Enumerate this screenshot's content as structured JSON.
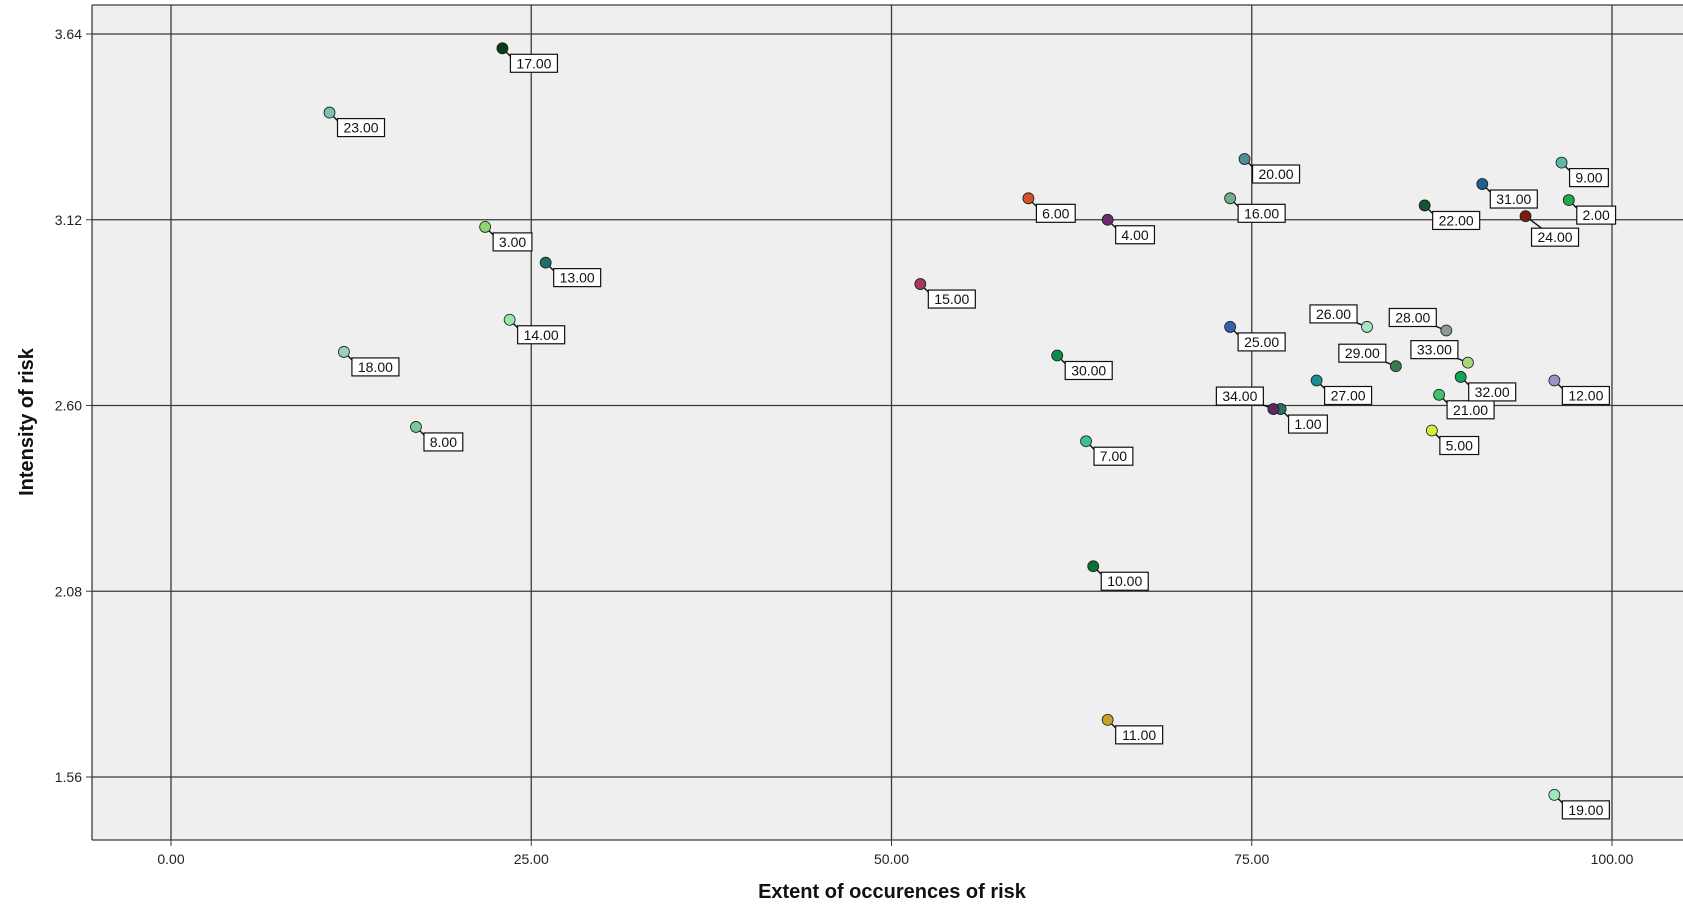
{
  "chart_data": {
    "type": "scatter",
    "title": "",
    "xlabel": "Extent of occurences of risk",
    "ylabel": "Intensity of risk",
    "xlim": [
      -5.5,
      105
    ],
    "ylim": [
      1.385,
      3.72
    ],
    "x_ticks": [
      0,
      25,
      50,
      75,
      100
    ],
    "x_tick_labels": [
      "0.00",
      "25.00",
      "50.00",
      "75.00",
      "100.00"
    ],
    "y_ticks": [
      1.56,
      2.08,
      2.6,
      3.12,
      3.64
    ],
    "y_tick_labels": [
      "1.56",
      "2.08",
      "2.60",
      "3.12",
      "3.64"
    ],
    "grid": true,
    "plot_background": "#efefef",
    "points": [
      {
        "label": "1.00",
        "x": 77.0,
        "y": 2.59,
        "color": "#2c6e63",
        "side": "right"
      },
      {
        "label": "2.00",
        "x": 97.0,
        "y": 3.175,
        "color": "#22a84a",
        "side": "right"
      },
      {
        "label": "3.00",
        "x": 21.8,
        "y": 3.1,
        "color": "#8fd46e",
        "side": "right"
      },
      {
        "label": "4.00",
        "x": 65.0,
        "y": 3.12,
        "color": "#6b2a6e",
        "side": "right"
      },
      {
        "label": "5.00",
        "x": 87.5,
        "y": 2.53,
        "color": "#d8ee3a",
        "side": "right"
      },
      {
        "label": "6.00",
        "x": 59.5,
        "y": 3.18,
        "color": "#d4502a",
        "side": "right"
      },
      {
        "label": "7.00",
        "x": 63.5,
        "y": 2.5,
        "color": "#3fbf8c",
        "side": "right"
      },
      {
        "label": "8.00",
        "x": 17.0,
        "y": 2.54,
        "color": "#7cc79a",
        "side": "right"
      },
      {
        "label": "9.00",
        "x": 96.5,
        "y": 3.28,
        "color": "#5ab8a8",
        "side": "right"
      },
      {
        "label": "10.00",
        "x": 64.0,
        "y": 2.15,
        "color": "#0e6f38",
        "side": "right"
      },
      {
        "label": "11.00",
        "x": 65.0,
        "y": 1.72,
        "color": "#c7a32a",
        "side": "right"
      },
      {
        "label": "12.00",
        "x": 96.0,
        "y": 2.67,
        "color": "#9b93c6",
        "side": "right"
      },
      {
        "label": "13.00",
        "x": 26.0,
        "y": 3.0,
        "color": "#1a6f6a",
        "side": "right"
      },
      {
        "label": "14.00",
        "x": 23.5,
        "y": 2.84,
        "color": "#98e8a6",
        "side": "right"
      },
      {
        "label": "15.00",
        "x": 52.0,
        "y": 2.94,
        "color": "#a63a5a",
        "side": "right"
      },
      {
        "label": "16.00",
        "x": 73.5,
        "y": 3.18,
        "color": "#6fb08a",
        "side": "right"
      },
      {
        "label": "17.00",
        "x": 23.0,
        "y": 3.6,
        "color": "#0c3a18",
        "side": "right"
      },
      {
        "label": "18.00",
        "x": 12.0,
        "y": 2.75,
        "color": "#9ad0c0",
        "side": "right"
      },
      {
        "label": "19.00",
        "x": 96.0,
        "y": 1.51,
        "color": "#9ee8b6",
        "side": "right"
      },
      {
        "label": "20.00",
        "x": 74.5,
        "y": 3.29,
        "color": "#4f8f96",
        "side": "right"
      },
      {
        "label": "21.00",
        "x": 88.0,
        "y": 2.63,
        "color": "#3ec26a",
        "side": "right"
      },
      {
        "label": "22.00",
        "x": 87.0,
        "y": 3.16,
        "color": "#14532e",
        "side": "right"
      },
      {
        "label": "23.00",
        "x": 11.0,
        "y": 3.42,
        "color": "#79c2b6",
        "side": "right"
      },
      {
        "label": "24.00",
        "x": 94.0,
        "y": 3.13,
        "color": "#7a1e14",
        "side": "right-down"
      },
      {
        "label": "25.00",
        "x": 73.5,
        "y": 2.82,
        "color": "#3760b4",
        "side": "right"
      },
      {
        "label": "26.00",
        "x": 83.0,
        "y": 2.82,
        "color": "#a6e6c2",
        "side": "left"
      },
      {
        "label": "27.00",
        "x": 79.5,
        "y": 2.67,
        "color": "#1d8a94",
        "side": "right"
      },
      {
        "label": "28.00",
        "x": 88.5,
        "y": 2.81,
        "color": "#8d9a9a",
        "side": "left"
      },
      {
        "label": "29.00",
        "x": 85.0,
        "y": 2.71,
        "color": "#3a7a4e",
        "side": "left"
      },
      {
        "label": "30.00",
        "x": 61.5,
        "y": 2.74,
        "color": "#0f8a4a",
        "side": "right"
      },
      {
        "label": "31.00",
        "x": 91.0,
        "y": 3.22,
        "color": "#1f5f8f",
        "side": "right"
      },
      {
        "label": "32.00",
        "x": 89.5,
        "y": 2.68,
        "color": "#10a45a",
        "side": "right"
      },
      {
        "label": "33.00",
        "x": 90.0,
        "y": 2.72,
        "color": "#a6d878",
        "side": "left"
      },
      {
        "label": "34.00",
        "x": 76.5,
        "y": 2.59,
        "color": "#5a2a5e",
        "side": "left"
      }
    ]
  }
}
